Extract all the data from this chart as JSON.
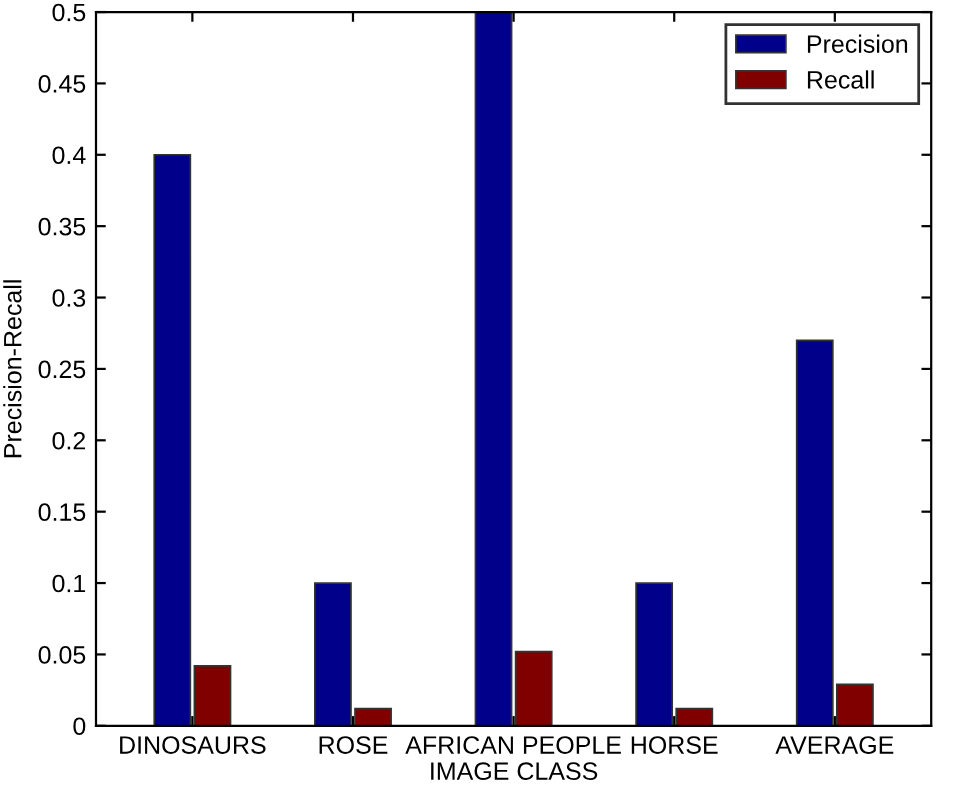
{
  "chart_data": {
    "type": "bar",
    "xlabel": "IMAGE CLASS",
    "ylabel": "Precision-Recall",
    "categories": [
      "DINOSAURS",
      "ROSE",
      "AFRICAN PEOPLE",
      "HORSE",
      "AVERAGE"
    ],
    "series": [
      {
        "name": "Precision",
        "color": "#00008b",
        "values": [
          0.4,
          0.1,
          0.5,
          0.1,
          0.27
        ]
      },
      {
        "name": "Recall",
        "color": "#800000",
        "values": [
          0.042,
          0.012,
          0.052,
          0.012,
          0.029
        ]
      }
    ],
    "ylim": [
      0,
      0.5
    ],
    "yticks": [
      0,
      0.05,
      0.1,
      0.15,
      0.2,
      0.25,
      0.3,
      0.35,
      0.4,
      0.45,
      0.5
    ],
    "grid": false,
    "legend": "top right"
  }
}
